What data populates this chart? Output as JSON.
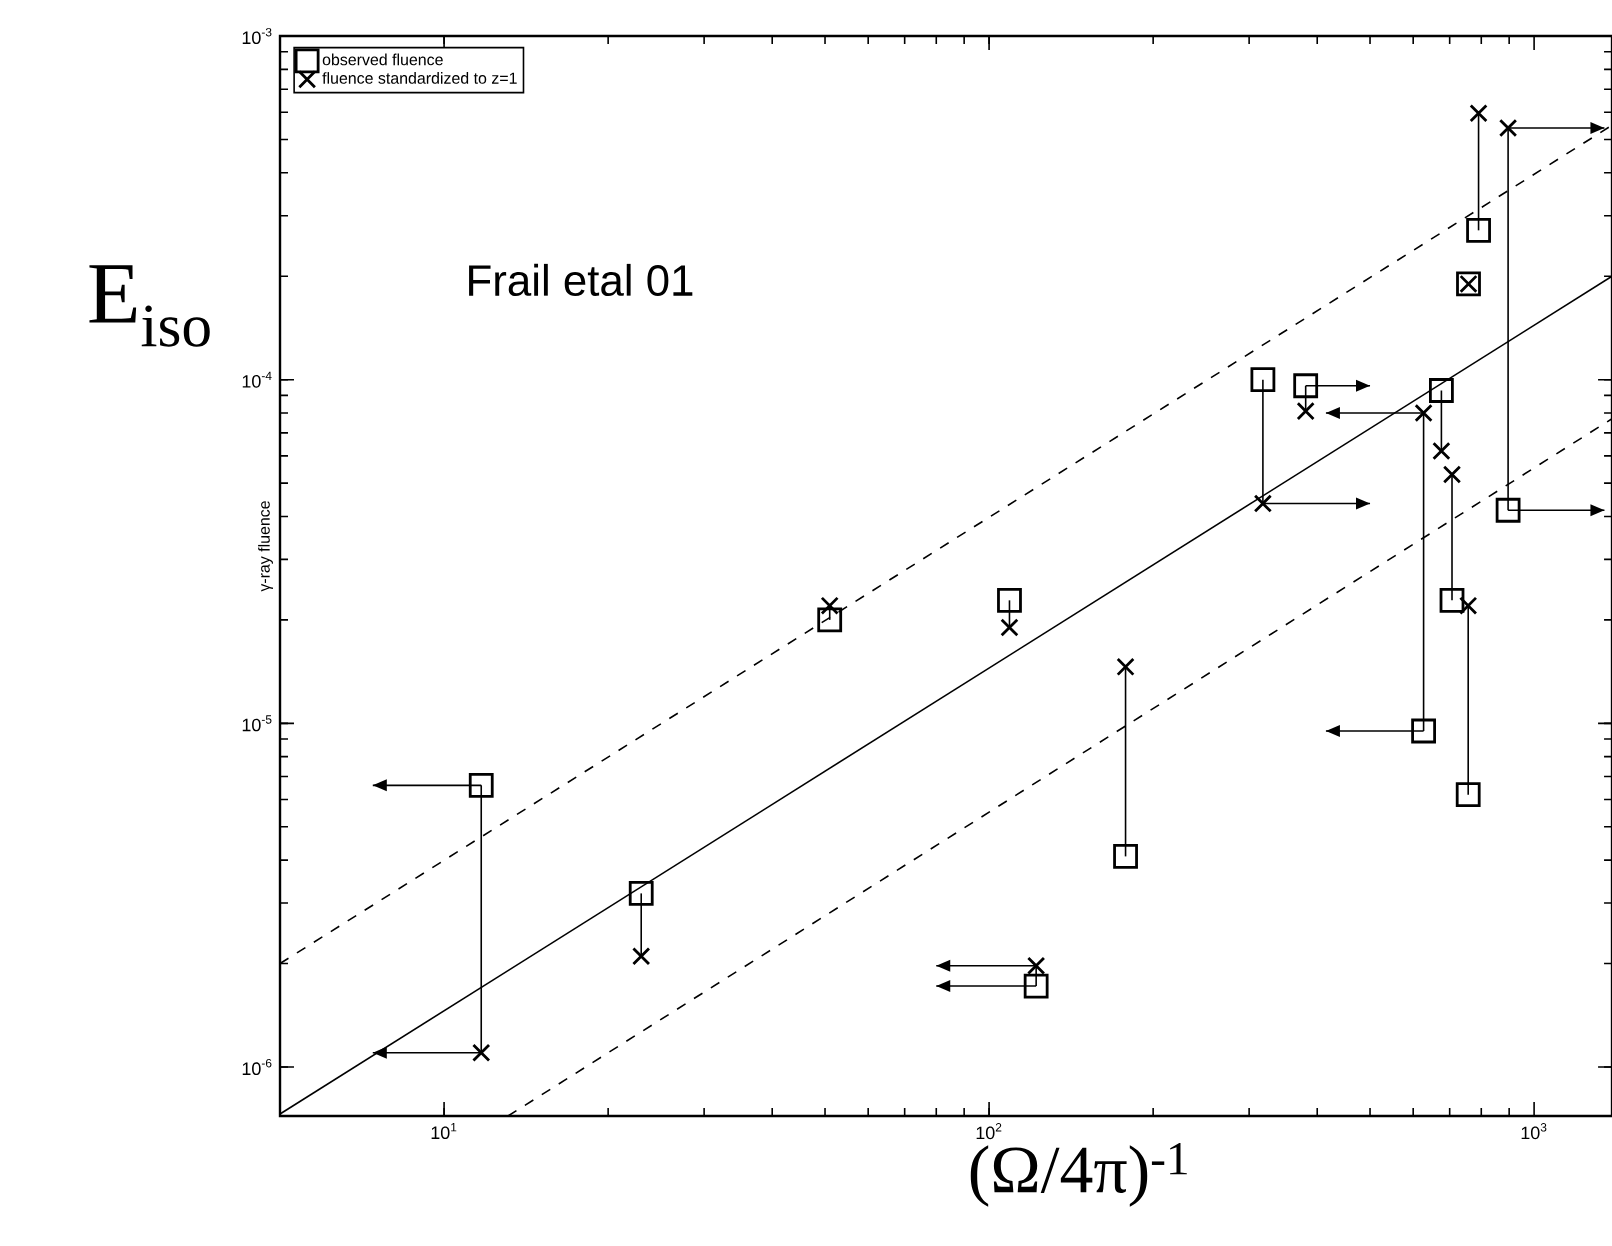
{
  "chart_data": {
    "type": "scatter",
    "xlabel": "(Ω/4π)$^{-1}$",
    "ylabel": "γ-ray fluence",
    "annotations": [
      "E$_{iso}$",
      "Frail etal 01"
    ],
    "log": "xy",
    "legend": "top left",
    "xlim": [
      5,
      1390
    ],
    "ylim": [
      7.2e-07,
      0.001
    ],
    "xticks": [
      {
        "value": 10,
        "label": "10$^{1}$"
      },
      {
        "value": 100,
        "label": "10$^{2}$"
      },
      {
        "value": 1000,
        "label": "10$^{3}$"
      }
    ],
    "yticks": [
      {
        "value": 1e-06,
        "label": "10$^{-6}$"
      },
      {
        "value": 1e-05,
        "label": "10$^{-5}$"
      },
      {
        "value": 0.0001,
        "label": "10$^{-4}$"
      },
      {
        "value": 0.001,
        "label": "10$^{-3}$"
      }
    ],
    "series": [
      {
        "name": "observed fluence",
        "marker": "square",
        "color": "#000000",
        "x": [
          11.7,
          23,
          51,
          109,
          122,
          178,
          318,
          381,
          627,
          676,
          707,
          757,
          758,
          791,
          896
        ],
        "values": [
          6.6e-06,
          3.2e-06,
          2e-05,
          2.28e-05,
          1.72e-06,
          4.1e-06,
          0.0001,
          9.6e-05,
          9.5e-06,
          9.3e-05,
          2.28e-05,
          6.2e-06,
          0.00019,
          0.000272,
          4.17e-05
        ],
        "errors": [
          [
            1.1e-06,
            6.6e-06
          ],
          [
            2.1e-06,
            3.2e-06
          ],
          [
            2e-05,
            2.2e-05
          ],
          [
            1.9e-05,
            2.28e-05
          ],
          [
            1.72e-06,
            1.97e-06
          ],
          [
            4.1e-06,
            1.46e-05
          ],
          [
            4.36e-05,
            0.0001
          ],
          [
            8.1e-05,
            9.6e-05
          ],
          [
            9.5e-06,
            8e-05
          ],
          [
            6.2e-05,
            9.3e-05
          ],
          [
            2.28e-05,
            5.3e-05
          ],
          [
            6.2e-06,
            2.2e-05
          ],
          null,
          [
            0.000272,
            0.000596
          ],
          [
            4.17e-05,
            0.00054
          ]
        ],
        "xerrors": [
          [
            7.4,
            11.7
          ],
          null,
          null,
          null,
          [
            80,
            122
          ],
          null,
          null,
          [
            381,
            500
          ],
          [
            415,
            627
          ],
          null,
          null,
          null,
          null,
          null,
          [
            896,
            1346
          ]
        ]
      },
      {
        "name": "fluence standardized to z=1",
        "marker": "cross",
        "color": "#000000",
        "x": [
          11.7,
          23,
          51,
          109,
          122,
          178,
          318,
          381,
          627,
          676,
          707,
          757,
          758,
          791,
          896
        ],
        "values": [
          1.1e-06,
          2.1e-06,
          2.2e-05,
          1.9e-05,
          1.97e-06,
          1.46e-05,
          4.36e-05,
          8.1e-05,
          8e-05,
          6.2e-05,
          5.3e-05,
          2.2e-05,
          0.00019,
          0.000596,
          0.00054
        ],
        "xerrors": [
          [
            7.4,
            11.7
          ],
          null,
          null,
          null,
          [
            80,
            122
          ],
          null,
          [
            318,
            500
          ],
          null,
          [
            415,
            627
          ],
          null,
          null,
          null,
          null,
          null,
          [
            896,
            1346
          ]
        ]
      },
      {
        "type": "line",
        "line_style": "solid",
        "marker": "none",
        "color": "#000000",
        "x": [
          5,
          1390
        ],
        "values": [
          7.3e-07,
          0.0002
        ]
      },
      {
        "type": "line",
        "line_style": "dashed",
        "marker": "none",
        "color": "#000000",
        "x": [
          5,
          1390
        ],
        "values": [
          2e-06,
          0.00055
        ]
      },
      {
        "type": "line",
        "line_style": "dashed",
        "marker": "none",
        "color": "#000000",
        "x": [
          13.1,
          1390
        ],
        "values": [
          7.2e-07,
          7.7e-05
        ]
      }
    ]
  }
}
